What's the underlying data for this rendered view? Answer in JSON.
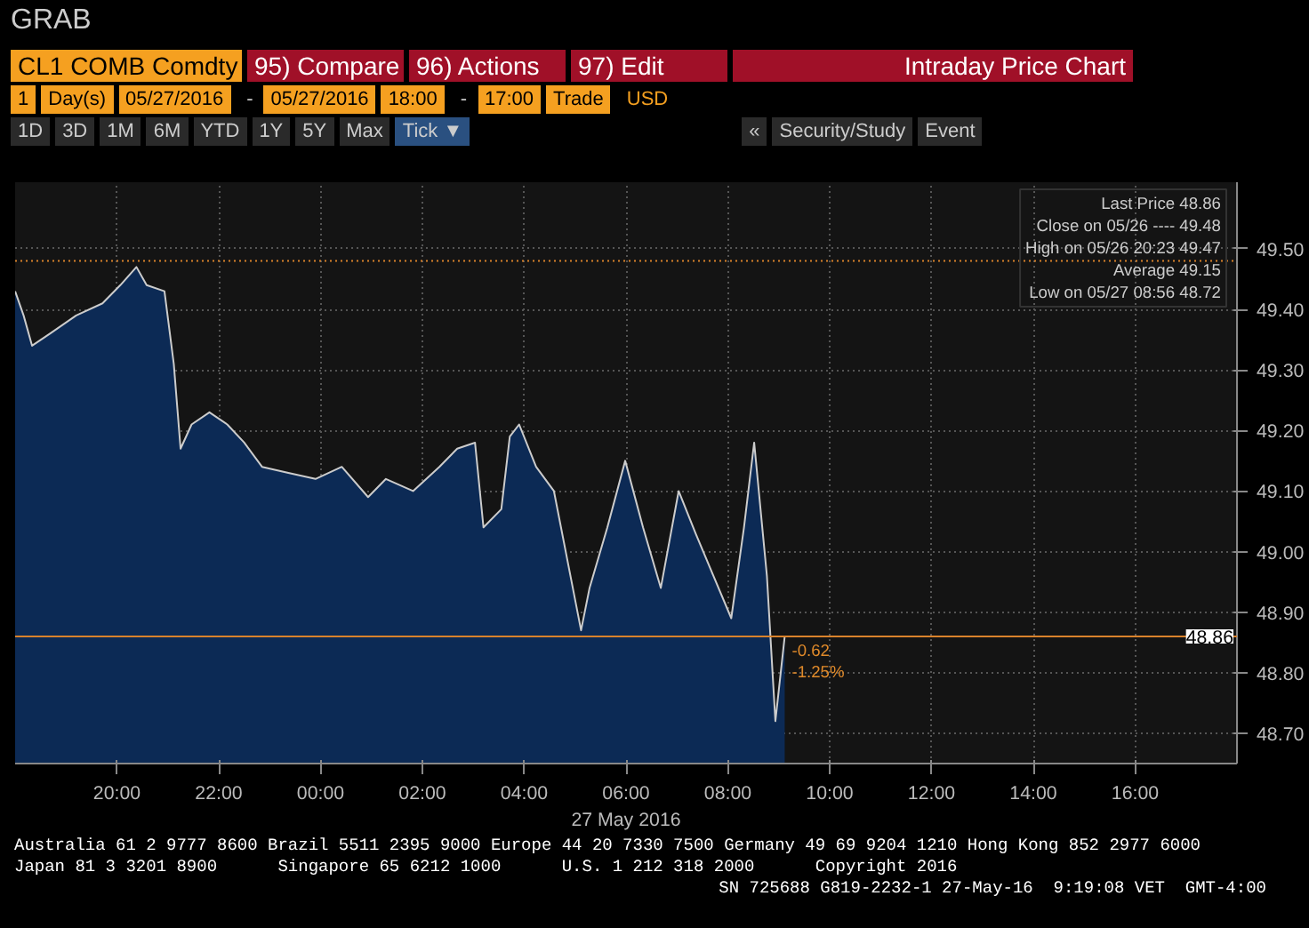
{
  "chart_data": {
    "type": "area",
    "title": "Intraday Price Chart",
    "subtitle": "CL1 COMB Comdty",
    "xlabel": "27 May 2016",
    "x": [
      "2016-05-26T18:00",
      "2016-05-26T18:10",
      "2016-05-26T18:20",
      "2016-05-26T18:41",
      "2016-05-26T19:12",
      "2016-05-26T19:43",
      "2016-05-26T20:04",
      "2016-05-26T20:23",
      "2016-05-26T20:35",
      "2016-05-26T20:56",
      "2016-05-26T21:07",
      "2016-05-26T21:15",
      "2016-05-26T21:28",
      "2016-05-26T21:49",
      "2016-05-26T22:10",
      "2016-05-26T22:30",
      "2016-05-26T22:51",
      "2016-05-26T23:22",
      "2016-05-26T23:54",
      "2016-05-27T00:25",
      "2016-05-27T00:56",
      "2016-05-27T01:17",
      "2016-05-27T01:49",
      "2016-05-27T02:20",
      "2016-05-27T02:41",
      "2016-05-27T03:02",
      "2016-05-27T03:12",
      "2016-05-27T03:33",
      "2016-05-27T03:43",
      "2016-05-27T03:54",
      "2016-05-27T04:14",
      "2016-05-27T04:35",
      "2016-05-27T05:07",
      "2016-05-27T05:17",
      "2016-05-27T05:38",
      "2016-05-27T05:59",
      "2016-05-27T06:20",
      "2016-05-27T06:41",
      "2016-05-27T07:02",
      "2016-05-27T07:22",
      "2016-05-27T07:43",
      "2016-05-27T08:04",
      "2016-05-27T08:19",
      "2016-05-27T08:31",
      "2016-05-27T08:46",
      "2016-05-27T08:56",
      "2016-05-27T09:07"
    ],
    "series": [
      {
        "color": "#0c2a55",
        "values": [
          49.43,
          49.39,
          49.34,
          49.36,
          49.39,
          49.41,
          49.44,
          49.47,
          49.44,
          49.43,
          49.31,
          49.17,
          49.21,
          49.23,
          49.21,
          49.18,
          49.14,
          49.13,
          49.12,
          49.14,
          49.09,
          49.12,
          49.1,
          49.14,
          49.17,
          49.18,
          49.04,
          49.07,
          49.19,
          49.21,
          49.14,
          49.1,
          48.87,
          48.94,
          49.04,
          49.15,
          49.04,
          48.94,
          49.1,
          49.03,
          48.96,
          48.89,
          49.04,
          49.18,
          48.96,
          48.72,
          48.86
        ]
      }
    ],
    "xlim": [
      "2016-05-26T18:00",
      "2016-05-27T18:00"
    ],
    "ylim": [
      48.65,
      49.61
    ],
    "xticks": [
      {
        "value": "2016-05-26T20:00",
        "label": "20:00"
      },
      {
        "value": "2016-05-26T22:00",
        "label": "22:00"
      },
      {
        "value": "2016-05-27T00:00",
        "label": "00:00"
      },
      {
        "value": "2016-05-27T02:00",
        "label": "02:00"
      },
      {
        "value": "2016-05-27T04:00",
        "label": "04:00"
      },
      {
        "value": "2016-05-27T06:00",
        "label": "06:00"
      },
      {
        "value": "2016-05-27T08:00",
        "label": "08:00"
      },
      {
        "value": "2016-05-27T10:00",
        "label": "10:00"
      },
      {
        "value": "2016-05-27T12:00",
        "label": "12:00"
      },
      {
        "value": "2016-05-27T14:00",
        "label": "14:00"
      },
      {
        "value": "2016-05-27T16:00",
        "label": "16:00"
      }
    ],
    "yticks": [
      {
        "value": 48.7,
        "label": "48.70"
      },
      {
        "value": 48.8,
        "label": "48.80"
      },
      {
        "value": 48.9,
        "label": "48.90"
      },
      {
        "value": 49.0,
        "label": "49.00"
      },
      {
        "value": 49.1,
        "label": "49.10"
      },
      {
        "value": 49.2,
        "label": "49.20"
      },
      {
        "value": 49.3,
        "label": "49.30"
      },
      {
        "value": 49.4,
        "label": "49.40"
      },
      {
        "value": 49.5,
        "label": "49.50"
      }
    ],
    "grid": true,
    "ref_lines": [
      {
        "axis": "y",
        "value": 49.48,
        "color": "#d9822b",
        "line_style": "dotted"
      },
      {
        "axis": "y",
        "value": 48.86,
        "label": "48.86",
        "color": "#d9822b",
        "line_style": "solid"
      }
    ],
    "annotations": [
      "GRAB",
      "95) Compare",
      "96) Actions",
      "97) Edit",
      "1",
      "Day(s)",
      "05/27/2016",
      "-",
      "05/27/2016",
      "18:00",
      "-",
      "17:00",
      "Trade",
      "USD",
      "1D",
      "3D",
      "1M",
      "6M",
      "YTD",
      "1Y",
      "5Y",
      "Max",
      "Tick ▼",
      "«",
      "Security/Study",
      "Event",
      {
        "text": "-0.62\n-1.25%",
        "x": "2016-05-27T09:07",
        "y": 48.86
      },
      "Last Price 48.86",
      "Close on 05/26 ---- 49.48",
      "High on 05/26 20:23 49.47",
      "Average 49.15",
      "Low on 05/27 08:56 48.72",
      "Australia 61 2 9777 8600 Brazil 5511 2395 9000 Europe 44 20 7330 7500 Germany 49 69 9204 1210 Hong Kong 852 2977 6000",
      "Japan 81 3 3201 8900      Singapore 65 6212 1000      U.S. 1 212 318 2000      Copyright 2016",
      "SN 725688 G819-2232-1 27-May-16  9:19:08 VET  GMT-4:00"
    ]
  }
}
